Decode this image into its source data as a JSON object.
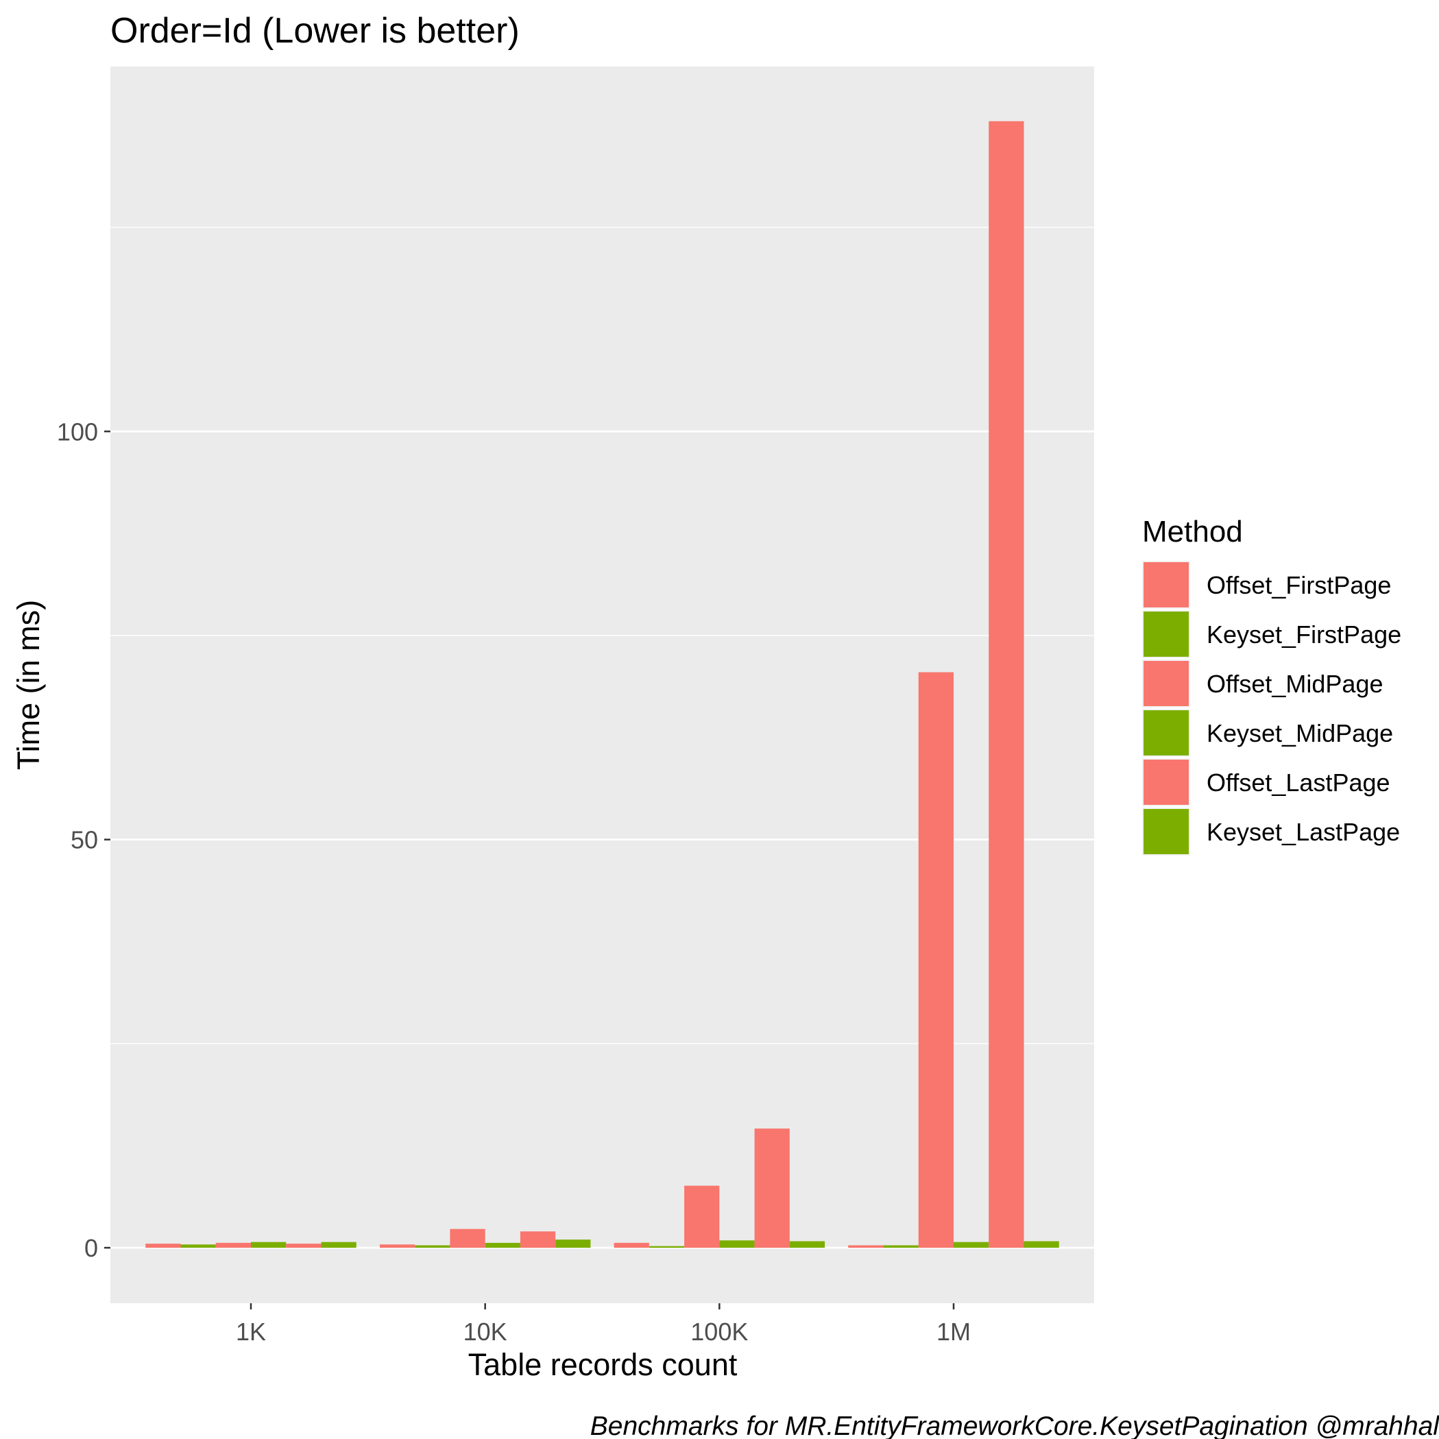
{
  "chart_data": {
    "type": "bar",
    "title": "Order=Id (Lower is better)",
    "xlabel": "Table records count",
    "ylabel": "Time (in ms)",
    "caption": "Benchmarks for MR.EntityFrameworkCore.KeysetPagination @mrahhal",
    "categories": [
      "1K",
      "10K",
      "100K",
      "1M"
    ],
    "ylim": [
      -6.8,
      144.7
    ],
    "yticks": [
      0,
      50,
      100
    ],
    "grid": true,
    "legend": {
      "title": "Method",
      "position": "right"
    },
    "series": [
      {
        "name": "Offset_FirstPage",
        "color": "#F8766D",
        "values": [
          0.5,
          0.4,
          0.6,
          0.3
        ]
      },
      {
        "name": "Keyset_FirstPage",
        "color": "#7CAE00",
        "values": [
          0.4,
          0.3,
          0.2,
          0.3
        ]
      },
      {
        "name": "Offset_MidPage",
        "color": "#F8766D",
        "values": [
          0.6,
          2.3,
          7.6,
          70.5
        ]
      },
      {
        "name": "Keyset_MidPage",
        "color": "#7CAE00",
        "values": [
          0.7,
          0.6,
          0.9,
          0.7
        ]
      },
      {
        "name": "Offset_LastPage",
        "color": "#F8766D",
        "values": [
          0.5,
          2.0,
          14.6,
          138.0
        ]
      },
      {
        "name": "Keyset_LastPage",
        "color": "#7CAE00",
        "values": [
          0.7,
          1.0,
          0.8,
          0.8
        ]
      }
    ]
  }
}
